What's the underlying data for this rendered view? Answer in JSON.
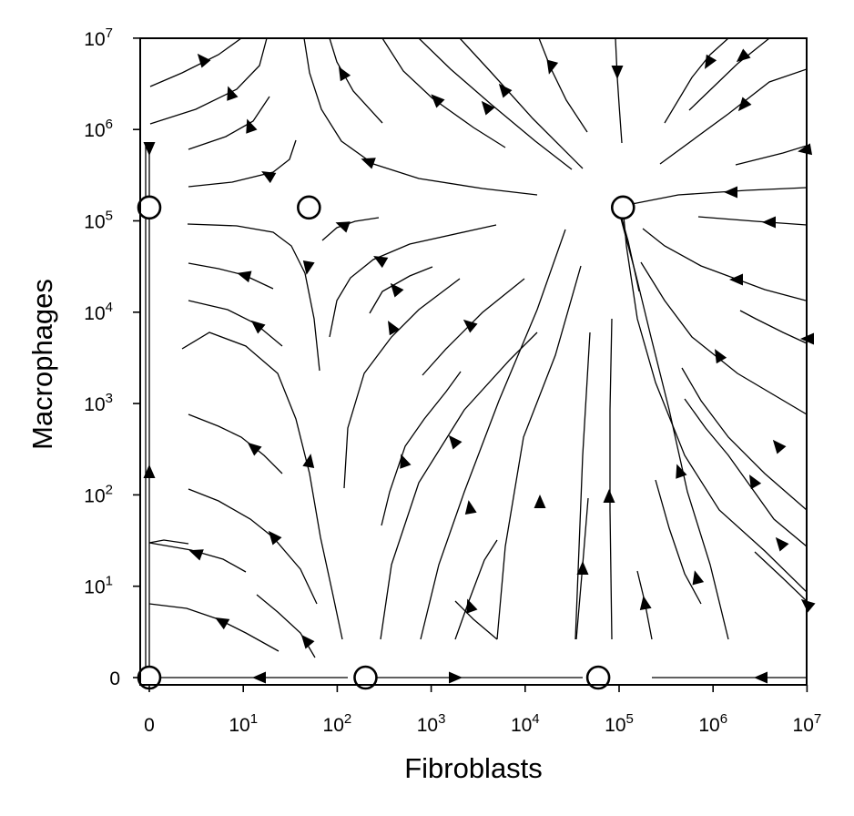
{
  "chart_data": {
    "type": "streamplot",
    "xlabel": "Fibroblasts",
    "ylabel": "Macrophages",
    "x_scale": "symlog",
    "y_scale": "symlog",
    "xlim": [
      0,
      10000000
    ],
    "ylim": [
      0,
      10000000
    ],
    "grid": false,
    "x_ticks": [
      {
        "base": "0",
        "exp": ""
      },
      {
        "base": "10",
        "exp": "1"
      },
      {
        "base": "10",
        "exp": "2"
      },
      {
        "base": "10",
        "exp": "3"
      },
      {
        "base": "10",
        "exp": "4"
      },
      {
        "base": "10",
        "exp": "5"
      },
      {
        "base": "10",
        "exp": "6"
      },
      {
        "base": "10",
        "exp": "7"
      }
    ],
    "y_ticks": [
      {
        "base": "0",
        "exp": ""
      },
      {
        "base": "10",
        "exp": "1"
      },
      {
        "base": "10",
        "exp": "2"
      },
      {
        "base": "10",
        "exp": "3"
      },
      {
        "base": "10",
        "exp": "4"
      },
      {
        "base": "10",
        "exp": "5"
      },
      {
        "base": "10",
        "exp": "6"
      },
      {
        "base": "10",
        "exp": "7"
      }
    ],
    "fixed_points": [
      {
        "x": 0,
        "y": 0
      },
      {
        "x": 0,
        "y": 140000
      },
      {
        "x": 50,
        "y": 140000
      },
      {
        "x": 200,
        "y": 0
      },
      {
        "x": 60000,
        "y": 0
      },
      {
        "x": 110000,
        "y": 140000
      }
    ],
    "color": "#000000"
  }
}
